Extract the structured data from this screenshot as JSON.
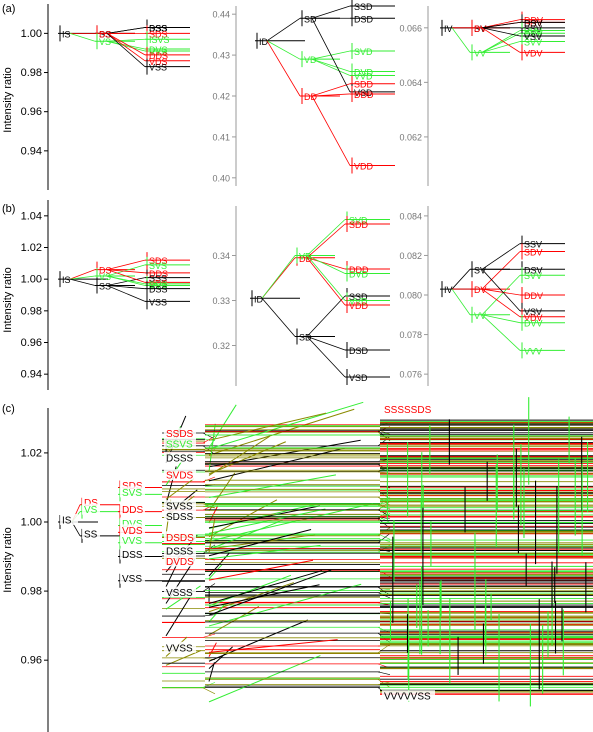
{
  "colors": {
    "black": "#000000",
    "red": "#ff0000",
    "green": "#33ee33",
    "olive": "#8a8a00",
    "axis_gray": "#9a9a9a"
  },
  "chart_data": [
    {
      "panel": "(a)",
      "type": "line",
      "ylabel": "Intensity ratio",
      "subplots": [
        {
          "id": "a1",
          "ylim": [
            0.92,
            1.015
          ],
          "yticks": [
            0.94,
            0.96,
            0.98,
            1.0
          ],
          "ytick_labels": [
            "0.94",
            "0.96",
            "0.98",
            "1.00"
          ],
          "nodes": [
            {
              "label": "IS",
              "level": 0,
              "y": 1.0,
              "color": "black"
            },
            {
              "label": "SS",
              "level": 1,
              "y": 1.0,
              "color": "black",
              "parent": "IS"
            },
            {
              "label": "DS",
              "level": 1,
              "y": 1.0,
              "color": "red",
              "parent": "IS"
            },
            {
              "label": "VS",
              "level": 1,
              "y": 0.996,
              "color": "green",
              "parent": "IS"
            },
            {
              "label": "SSS",
              "level": 2,
              "y": 1.003,
              "color": "black",
              "parent": "SS"
            },
            {
              "label": "DSS",
              "level": 2,
              "y": 1.003,
              "color": "black",
              "parent": "SS"
            },
            {
              "label": "SDS",
              "level": 2,
              "y": 1.0,
              "color": "red",
              "parent": "DS"
            },
            {
              "label": "ISVS",
              "level": 2,
              "y": 0.997,
              "color": "green",
              "parent": "VS"
            },
            {
              "label": "DVS",
              "level": 2,
              "y": 0.992,
              "color": "green",
              "parent": "VS"
            },
            {
              "label": "VVS",
              "level": 2,
              "y": 0.991,
              "color": "green",
              "parent": "VS"
            },
            {
              "label": "DDS",
              "level": 2,
              "y": 0.989,
              "color": "red",
              "parent": "DS"
            },
            {
              "label": "VDS",
              "level": 2,
              "y": 0.986,
              "color": "red",
              "parent": "DS"
            },
            {
              "label": "VSS",
              "level": 2,
              "y": 0.983,
              "color": "black",
              "parent": "SS"
            }
          ]
        },
        {
          "id": "a2",
          "ylim": [
            0.398,
            0.442
          ],
          "yticks": [
            0.4,
            0.41,
            0.42,
            0.43,
            0.44
          ],
          "ytick_labels": [
            "0.40",
            "0.41",
            "0.42",
            "0.43",
            "0.44"
          ],
          "nodes": [
            {
              "label": "ID",
              "level": 0,
              "y": 0.4335,
              "color": "black"
            },
            {
              "label": "SD",
              "level": 1,
              "y": 0.439,
              "color": "black",
              "parent": "ID"
            },
            {
              "label": "VD",
              "level": 1,
              "y": 0.429,
              "color": "green",
              "parent": "ID"
            },
            {
              "label": "DD",
              "level": 1,
              "y": 0.42,
              "color": "red",
              "parent": "ID"
            },
            {
              "label": "SSD",
              "level": 2,
              "y": 0.442,
              "color": "black",
              "parent": "SD"
            },
            {
              "label": "DSD",
              "level": 2,
              "y": 0.439,
              "color": "black",
              "parent": "SD"
            },
            {
              "label": "SVD",
              "level": 2,
              "y": 0.431,
              "color": "green",
              "parent": "VD"
            },
            {
              "label": "DVD",
              "level": 2,
              "y": 0.426,
              "color": "green",
              "parent": "VD"
            },
            {
              "label": "VVD",
              "level": 2,
              "y": 0.425,
              "color": "green",
              "parent": "VD"
            },
            {
              "label": "SDD",
              "level": 2,
              "y": 0.423,
              "color": "red",
              "parent": "DD"
            },
            {
              "label": "VSD",
              "level": 2,
              "y": 0.421,
              "color": "black",
              "parent": "SD"
            },
            {
              "label": "DDD",
              "level": 2,
              "y": 0.4205,
              "color": "red",
              "parent": "DD"
            },
            {
              "label": "VDD",
              "level": 2,
              "y": 0.403,
              "color": "red",
              "parent": "DD"
            }
          ]
        },
        {
          "id": "a3",
          "ylim": [
            0.0602,
            0.0668
          ],
          "yticks": [
            0.062,
            0.064,
            0.066
          ],
          "ytick_labels": [
            "0.062",
            "0.064",
            "0.066"
          ],
          "nodes": [
            {
              "label": "IV",
              "level": 0,
              "y": 0.066,
              "color": "black"
            },
            {
              "label": "SV",
              "level": 1,
              "y": 0.066,
              "color": "black",
              "parent": "IV"
            },
            {
              "label": "DV",
              "level": 1,
              "y": 0.066,
              "color": "red",
              "parent": "IV"
            },
            {
              "label": "VV",
              "level": 1,
              "y": 0.0651,
              "color": "green",
              "parent": "IV"
            },
            {
              "label": "DDV",
              "level": 2,
              "y": 0.0663,
              "color": "red",
              "parent": "DV"
            },
            {
              "label": "SDV",
              "level": 2,
              "y": 0.0662,
              "color": "red",
              "parent": "DV"
            },
            {
              "label": "DSV",
              "level": 2,
              "y": 0.0662,
              "color": "black",
              "parent": "SV"
            },
            {
              "label": "SSV",
              "level": 2,
              "y": 0.066,
              "color": "black",
              "parent": "SV"
            },
            {
              "label": "VVV",
              "level": 2,
              "y": 0.0659,
              "color": "green",
              "parent": "VV"
            },
            {
              "label": "DVV",
              "level": 2,
              "y": 0.0658,
              "color": "green",
              "parent": "VV"
            },
            {
              "label": "VSV",
              "level": 2,
              "y": 0.0657,
              "color": "black",
              "parent": "SV"
            },
            {
              "label": "SVV",
              "level": 2,
              "y": 0.0655,
              "color": "green",
              "parent": "VV"
            },
            {
              "label": "VDV",
              "level": 2,
              "y": 0.0651,
              "color": "red",
              "parent": "DV"
            }
          ]
        }
      ]
    },
    {
      "panel": "(b)",
      "type": "line",
      "ylabel": "Intensity ratio",
      "subplots": [
        {
          "id": "b1",
          "ylim": [
            0.93,
            1.05
          ],
          "yticks": [
            0.94,
            0.96,
            0.98,
            1.0,
            1.02,
            1.04
          ],
          "ytick_labels": [
            "0.94",
            "0.96",
            "0.98",
            "1.00",
            "1.02",
            "1.04"
          ],
          "nodes": [
            {
              "label": "IS",
              "level": 0,
              "y": 1.0,
              "color": "black"
            },
            {
              "label": "DS",
              "level": 1,
              "y": 1.006,
              "color": "red",
              "parent": "IS"
            },
            {
              "label": "VS",
              "level": 1,
              "y": 1.002,
              "color": "green",
              "parent": "IS"
            },
            {
              "label": "SS",
              "level": 1,
              "y": 0.996,
              "color": "black",
              "parent": "IS"
            },
            {
              "label": "SDS",
              "level": 2,
              "y": 1.012,
              "color": "red",
              "parent": "DS"
            },
            {
              "label": "SVS",
              "level": 2,
              "y": 1.009,
              "color": "green",
              "parent": "VS"
            },
            {
              "label": "DDS",
              "level": 2,
              "y": 1.004,
              "color": "red",
              "parent": "DS"
            },
            {
              "label": "SSS",
              "level": 2,
              "y": 1.001,
              "color": "black",
              "parent": "SS"
            },
            {
              "label": "VDS",
              "level": 2,
              "y": 0.998,
              "color": "red",
              "parent": "DS"
            },
            {
              "label": "DVS",
              "level": 2,
              "y": 0.997,
              "color": "green",
              "parent": "VS"
            },
            {
              "label": "VVS",
              "level": 2,
              "y": 0.996,
              "color": "green",
              "parent": "VS"
            },
            {
              "label": "DSS",
              "level": 2,
              "y": 0.994,
              "color": "black",
              "parent": "SS"
            },
            {
              "label": "VSS",
              "level": 2,
              "y": 0.986,
              "color": "black",
              "parent": "SS"
            }
          ]
        },
        {
          "id": "b2",
          "ylim": [
            0.311,
            0.351
          ],
          "yticks": [
            0.32,
            0.33,
            0.34
          ],
          "ytick_labels": [
            "0.32",
            "0.33",
            "0.34"
          ],
          "nodes": [
            {
              "label": "ID",
              "level": 0,
              "y": 0.3305,
              "color": "black"
            },
            {
              "label": "DD",
              "level": 1,
              "y": 0.3395,
              "color": "red",
              "parent": "ID"
            },
            {
              "label": "VD",
              "level": 1,
              "y": 0.34,
              "color": "green",
              "parent": "ID"
            },
            {
              "label": "SD",
              "level": 1,
              "y": 0.322,
              "color": "black",
              "parent": "ID"
            },
            {
              "label": "SVD",
              "level": 2,
              "y": 0.348,
              "color": "green",
              "parent": "VD"
            },
            {
              "label": "SDD",
              "level": 2,
              "y": 0.347,
              "color": "red",
              "parent": "DD"
            },
            {
              "label": "DDD",
              "level": 2,
              "y": 0.337,
              "color": "red",
              "parent": "DD"
            },
            {
              "label": "DVD",
              "level": 2,
              "y": 0.336,
              "color": "green",
              "parent": "VD"
            },
            {
              "label": "SSD",
              "level": 2,
              "y": 0.331,
              "color": "black",
              "parent": "SD"
            },
            {
              "label": "VVD",
              "level": 2,
              "y": 0.33,
              "color": "green",
              "parent": "VD"
            },
            {
              "label": "VDD",
              "level": 2,
              "y": 0.329,
              "color": "red",
              "parent": "DD"
            },
            {
              "label": "DSD",
              "level": 2,
              "y": 0.319,
              "color": "black",
              "parent": "SD"
            },
            {
              "label": "VSD",
              "level": 2,
              "y": 0.313,
              "color": "black",
              "parent": "SD"
            }
          ]
        },
        {
          "id": "b3",
          "ylim": [
            0.0754,
            0.0845
          ],
          "yticks": [
            0.076,
            0.078,
            0.08,
            0.082,
            0.084
          ],
          "ytick_labels": [
            "0.076",
            "0.078",
            "0.080",
            "0.082",
            "0.084"
          ],
          "nodes": [
            {
              "label": "IV",
              "level": 0,
              "y": 0.0803,
              "color": "black"
            },
            {
              "label": "SV",
              "level": 1,
              "y": 0.0813,
              "color": "black",
              "parent": "IV"
            },
            {
              "label": "DV",
              "level": 1,
              "y": 0.0803,
              "color": "red",
              "parent": "IV"
            },
            {
              "label": "VV",
              "level": 1,
              "y": 0.079,
              "color": "green",
              "parent": "IV"
            },
            {
              "label": "SSV",
              "level": 2,
              "y": 0.0826,
              "color": "black",
              "parent": "SV"
            },
            {
              "label": "SDV",
              "level": 2,
              "y": 0.0822,
              "color": "red",
              "parent": "DV"
            },
            {
              "label": "DSV",
              "level": 2,
              "y": 0.0813,
              "color": "black",
              "parent": "SV"
            },
            {
              "label": "SVV",
              "level": 2,
              "y": 0.081,
              "color": "green",
              "parent": "VV"
            },
            {
              "label": "DDV",
              "level": 2,
              "y": 0.08,
              "color": "red",
              "parent": "DV"
            },
            {
              "label": "VSV",
              "level": 2,
              "y": 0.0792,
              "color": "black",
              "parent": "SV"
            },
            {
              "label": "VDV",
              "level": 2,
              "y": 0.0789,
              "color": "red",
              "parent": "DV"
            },
            {
              "label": "DVV",
              "level": 2,
              "y": 0.0786,
              "color": "green",
              "parent": "VV"
            },
            {
              "label": "VVV",
              "level": 2,
              "y": 0.0772,
              "color": "green",
              "parent": "VV"
            }
          ]
        }
      ]
    },
    {
      "panel": "(c)",
      "type": "line",
      "ylabel": "Intensity ratio",
      "ylim": [
        0.945,
        1.033
      ],
      "yticks": [
        0.96,
        0.98,
        1.0,
        1.02
      ],
      "ytick_labels": [
        "0.96",
        "0.98",
        "1.00",
        "1.02"
      ],
      "labeled_nodes": [
        {
          "label": "IS",
          "level": 0,
          "y": 1.0,
          "color": "black"
        },
        {
          "label": "DS",
          "level": 1,
          "y": 1.005,
          "color": "red"
        },
        {
          "label": "VS",
          "level": 1,
          "y": 1.003,
          "color": "green"
        },
        {
          "label": "SS",
          "level": 1,
          "y": 0.996,
          "color": "black"
        },
        {
          "label": "SDS",
          "level": 2,
          "y": 1.01,
          "color": "red"
        },
        {
          "label": "SVS",
          "level": 2,
          "y": 1.008,
          "color": "green"
        },
        {
          "label": "DDS",
          "level": 2,
          "y": 1.003,
          "color": "red"
        },
        {
          "label": "DVS",
          "level": 2,
          "y": 0.999,
          "color": "green"
        },
        {
          "label": "VDS",
          "level": 2,
          "y": 0.997,
          "color": "red"
        },
        {
          "label": "VVS",
          "level": 2,
          "y": 0.994,
          "color": "green"
        },
        {
          "label": "DSS",
          "level": 2,
          "y": 0.99,
          "color": "black"
        },
        {
          "label": "VSS",
          "level": 2,
          "y": 0.983,
          "color": "black"
        },
        {
          "label": "SSDS",
          "level": 3,
          "y": 1.025,
          "color": "red"
        },
        {
          "label": "SSVS",
          "level": 3,
          "y": 1.022,
          "color": "green"
        },
        {
          "label": "DSSS",
          "level": 3,
          "y": 1.018,
          "color": "black"
        },
        {
          "label": "SVDS",
          "level": 3,
          "y": 1.013,
          "color": "red"
        },
        {
          "label": "SVSS",
          "level": 3,
          "y": 1.004,
          "color": "black"
        },
        {
          "label": "DSDS",
          "level": 3,
          "y": 0.995,
          "color": "red"
        },
        {
          "label": "SDSS",
          "level": 3,
          "y": 1.001,
          "color": "black"
        },
        {
          "label": "DSSS",
          "level": 3,
          "y": 0.991,
          "color": "black"
        },
        {
          "label": "DVDS",
          "level": 3,
          "y": 0.988,
          "color": "red"
        },
        {
          "label": "VSSS",
          "level": 3,
          "y": 0.979,
          "color": "black"
        },
        {
          "label": "VVSS",
          "level": 3,
          "y": 0.963,
          "color": "black"
        },
        {
          "label": "SSSSSDS",
          "level": 5,
          "y": 1.032,
          "color": "red"
        },
        {
          "label": "VVVVVSS",
          "level": 5,
          "y": 0.949,
          "color": "black"
        }
      ],
      "dense_levels_note_hidden": true
    }
  ]
}
